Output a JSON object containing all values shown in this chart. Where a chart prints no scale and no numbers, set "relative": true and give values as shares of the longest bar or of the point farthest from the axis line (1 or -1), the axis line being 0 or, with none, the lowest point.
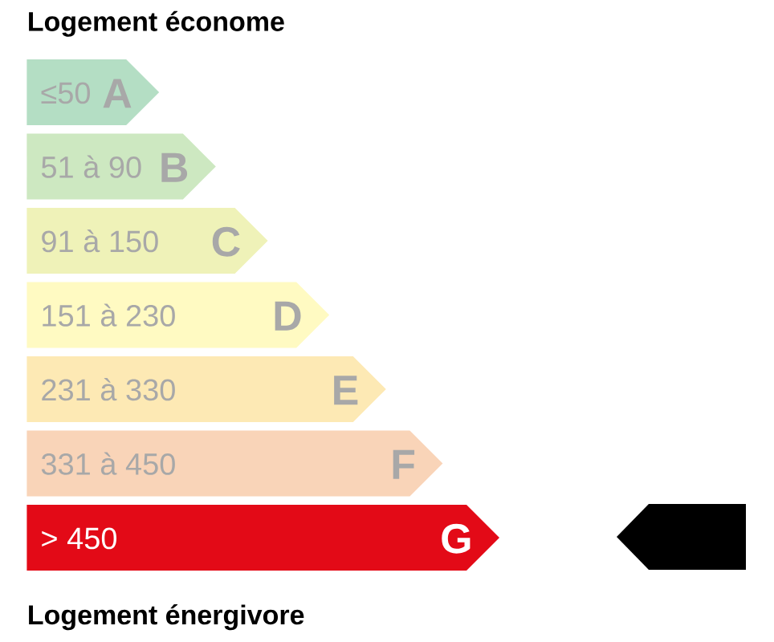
{
  "chart_data": {
    "type": "bar",
    "orientation": "horizontal",
    "relative": true,
    "title": "Logement économe",
    "categories": [
      "≤50",
      "51 à 90",
      "91 à 150",
      "151 à 230",
      "231 à 330",
      "331 à 450",
      "> 450"
    ],
    "values": [
      0.28,
      0.4,
      0.51,
      0.64,
      0.76,
      0.88,
      1
    ],
    "colors": [
      "#b4dec4",
      "#cde8c1",
      "#eff2b8",
      "#fffac2",
      "#fde9b4",
      "#f9d4b8",
      "#e30a17"
    ],
    "annotations": [
      {
        "text": "A",
        "x": 0.28,
        "y": "≤50"
      },
      {
        "text": "B",
        "x": 0.4,
        "y": "51 à 90"
      },
      {
        "text": "C",
        "x": 0.51,
        "y": "91 à 150"
      },
      {
        "text": "D",
        "x": 0.64,
        "y": "151 à 230"
      },
      {
        "text": "E",
        "x": 0.76,
        "y": "231 à 330"
      },
      {
        "text": "F",
        "x": 0.88,
        "y": "331 à 450"
      },
      {
        "text": "G",
        "x": 1,
        "y": "> 450"
      },
      "Logement énergivore"
    ]
  }
}
